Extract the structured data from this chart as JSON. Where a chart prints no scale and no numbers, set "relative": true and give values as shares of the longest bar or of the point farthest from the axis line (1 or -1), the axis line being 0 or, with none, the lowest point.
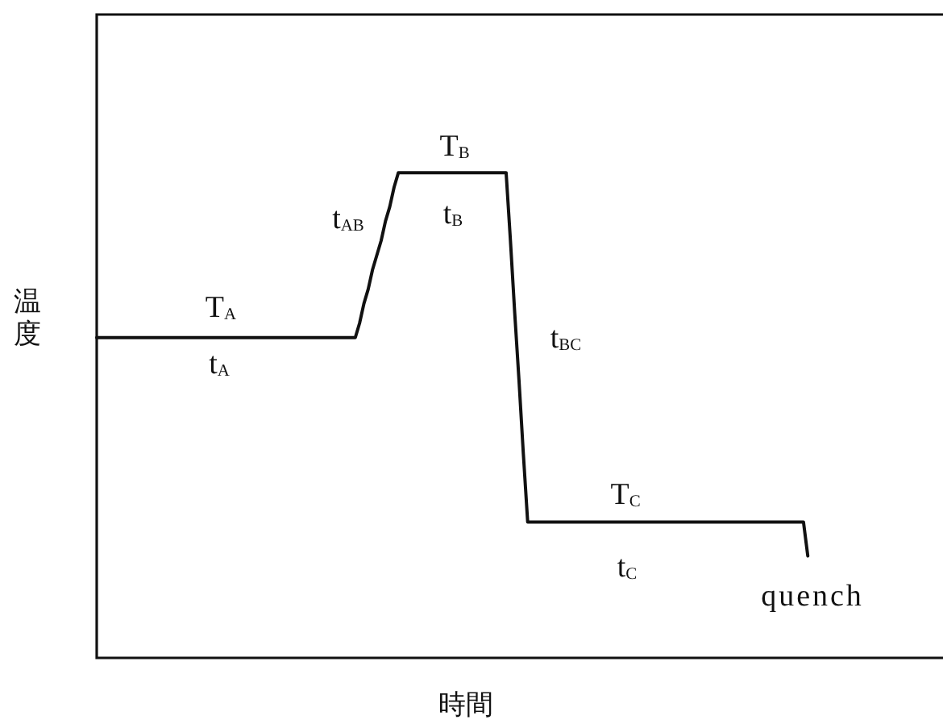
{
  "chart_data": {
    "type": "line",
    "xlabel": "時間",
    "ylabel": "温度",
    "relative": true,
    "tick_labels": false,
    "marker": "none",
    "line_style": "solid",
    "color": "#111111",
    "categories": [
      null,
      null,
      null,
      null,
      null,
      null,
      null,
      null,
      null,
      null,
      null,
      null,
      null,
      null,
      null,
      null,
      null,
      null,
      null,
      null,
      null,
      null,
      null,
      null,
      null,
      null,
      null,
      null,
      null,
      null,
      null,
      null,
      null,
      null,
      null,
      null,
      null,
      null,
      null,
      null,
      null,
      null,
      null,
      null,
      null,
      null,
      null,
      null,
      null,
      null,
      null,
      null,
      null,
      null,
      null,
      null,
      null,
      null,
      null,
      null,
      null,
      null,
      null,
      null,
      null,
      null,
      null,
      null,
      null,
      null,
      null,
      null,
      null,
      null,
      null,
      null,
      null,
      null,
      null,
      null,
      null,
      null,
      null,
      null,
      null,
      null,
      null,
      null,
      null,
      null,
      null,
      null,
      null,
      null,
      null,
      null,
      null,
      null,
      null,
      null,
      null,
      null,
      null,
      null,
      null,
      null,
      null,
      null,
      null,
      null,
      null,
      null,
      null,
      null,
      null,
      null,
      null,
      null,
      null,
      null,
      null,
      null,
      null,
      null,
      null,
      null,
      null,
      null,
      null,
      null,
      null,
      null,
      null,
      null,
      null,
      null,
      null,
      null,
      null,
      null,
      null,
      null,
      null,
      null,
      null,
      null,
      null,
      null,
      null,
      null,
      null,
      null,
      null,
      null,
      null,
      null,
      null,
      null,
      null,
      null,
      null,
      null,
      null,
      null,
      null,
      null,
      null,
      null,
      null,
      null,
      null,
      null,
      null,
      null,
      null,
      null,
      null,
      null,
      null,
      null,
      null,
      null,
      null,
      null,
      null,
      null,
      null,
      null,
      null,
      null,
      null,
      null,
      null,
      null,
      null,
      null,
      null
    ],
    "values": [
      0.66,
      0.66,
      0.66,
      0.66,
      0.66,
      0.66,
      0.66,
      0.66,
      0.66,
      0.66,
      0.66,
      0.66,
      0.66,
      0.66,
      0.66,
      0.66,
      0.66,
      0.66,
      0.66,
      0.66,
      0.66,
      0.66,
      0.66,
      0.66,
      0.66,
      0.66,
      0.66,
      0.66,
      0.66,
      0.66,
      0.66,
      0.66,
      0.66,
      0.66,
      0.66,
      0.66,
      0.66,
      0.66,
      0.66,
      0.66,
      0.66,
      0.66,
      0.66,
      0.66,
      0.66,
      0.66,
      0.66,
      0.66,
      0.66,
      0.66,
      0.66,
      0.66,
      0.66,
      0.66,
      0.66,
      0.66,
      0.66,
      0.66,
      0.66,
      0.66,
      0.66,
      0.69,
      0.73,
      0.76,
      0.8,
      0.83,
      0.86,
      0.9,
      0.93,
      0.97,
      1,
      1,
      1,
      1,
      1,
      1,
      1,
      1,
      1,
      1,
      1,
      1,
      1,
      1,
      1,
      1,
      1,
      1,
      1,
      1,
      1,
      1,
      1,
      1,
      1,
      1,
      0.86,
      0.71,
      0.57,
      0.42,
      0.28,
      0.28,
      0.28,
      0.28,
      0.28,
      0.28,
      0.28,
      0.28,
      0.28,
      0.28,
      0.28,
      0.28,
      0.28,
      0.28,
      0.28,
      0.28,
      0.28,
      0.28,
      0.28,
      0.28,
      0.28,
      0.28,
      0.28,
      0.28,
      0.28,
      0.28,
      0.28,
      0.28,
      0.28,
      0.28,
      0.28,
      0.28,
      0.28,
      0.28,
      0.28,
      0.28,
      0.28,
      0.28,
      0.28,
      0.28,
      0.28,
      0.28,
      0.28,
      0.28,
      0.28,
      0.28,
      0.28,
      0.28,
      0.28,
      0.28,
      0.28,
      0.28,
      0.28,
      0.28,
      0.28,
      0.28,
      0.28,
      0.28,
      0.28,
      0.28,
      0.28,
      0.28,
      0.28,
      0.28,
      0.28,
      0.21,
      null,
      null,
      null,
      null,
      null,
      null,
      null,
      null,
      null,
      null,
      null,
      null,
      null,
      null,
      null,
      null,
      null,
      null,
      null,
      null,
      null,
      null,
      null,
      null,
      null,
      null,
      null,
      null,
      null,
      null,
      null
    ],
    "annotations": [
      "T$_{A}$",
      "t$_{A}$",
      "t$_{AB}$",
      "T$_{B}$",
      "t$_{B}$",
      "t$_{BC}$",
      "T$_{C}$",
      "t$_{C}$",
      "quench"
    ]
  }
}
